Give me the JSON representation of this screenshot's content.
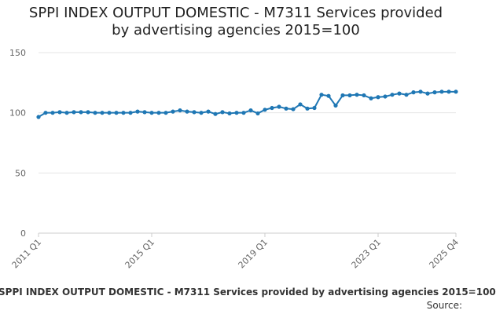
{
  "chart_data": {
    "type": "line",
    "title_lines": [
      "SPPI INDEX OUTPUT DOMESTIC - M7311 Services provided",
      "by advertising agencies 2015=100"
    ],
    "xlabel": "",
    "ylabel": "",
    "ylim": [
      0,
      150
    ],
    "yticks": [
      "0",
      "50",
      "100",
      "150"
    ],
    "xtick_labels": [
      "2011 Q1",
      "2015 Q1",
      "2019 Q1",
      "2023 Q1",
      "2025 Q4"
    ],
    "grid": true,
    "color": "#1f77b4",
    "x": [
      "2011 Q1",
      "2011 Q2",
      "2011 Q3",
      "2011 Q4",
      "2012 Q1",
      "2012 Q2",
      "2012 Q3",
      "2012 Q4",
      "2013 Q1",
      "2013 Q2",
      "2013 Q3",
      "2013 Q4",
      "2014 Q1",
      "2014 Q2",
      "2014 Q3",
      "2014 Q4",
      "2015 Q1",
      "2015 Q2",
      "2015 Q3",
      "2015 Q4",
      "2016 Q1",
      "2016 Q2",
      "2016 Q3",
      "2016 Q4",
      "2017 Q1",
      "2017 Q2",
      "2017 Q3",
      "2017 Q4",
      "2018 Q1",
      "2018 Q2",
      "2018 Q3",
      "2018 Q4",
      "2019 Q1",
      "2019 Q2",
      "2019 Q3",
      "2019 Q4",
      "2020 Q1",
      "2020 Q2",
      "2020 Q3",
      "2020 Q4",
      "2021 Q1",
      "2021 Q2",
      "2021 Q3",
      "2021 Q4",
      "2022 Q1",
      "2022 Q2",
      "2022 Q3",
      "2022 Q4",
      "2023 Q1",
      "2023 Q2",
      "2023 Q3",
      "2023 Q4",
      "2024 Q1",
      "2024 Q2",
      "2024 Q3",
      "2024 Q4",
      "2025 Q1",
      "2025 Q2",
      "2025 Q3",
      "2025 Q4"
    ],
    "values": [
      96.5,
      100,
      100,
      100.5,
      100,
      100.5,
      100.5,
      100.5,
      100,
      100,
      100,
      100,
      100,
      100,
      101,
      100.5,
      100,
      100,
      100,
      101,
      102,
      101,
      100.5,
      100,
      101,
      99,
      100.5,
      99.5,
      100,
      100,
      102,
      99.5,
      102.5,
      104,
      105,
      103.5,
      103,
      107,
      103.5,
      104,
      115,
      114,
      106,
      114.5,
      114.5,
      115,
      114.5,
      112,
      113,
      113.5,
      115,
      116,
      115,
      117,
      117.5,
      116,
      117,
      117.5,
      117.5,
      117.5
    ]
  },
  "footer": {
    "title": "SPPI INDEX OUTPUT DOMESTIC - M7311 Services provided by advertising agencies 2015=100",
    "source": "Source:"
  }
}
